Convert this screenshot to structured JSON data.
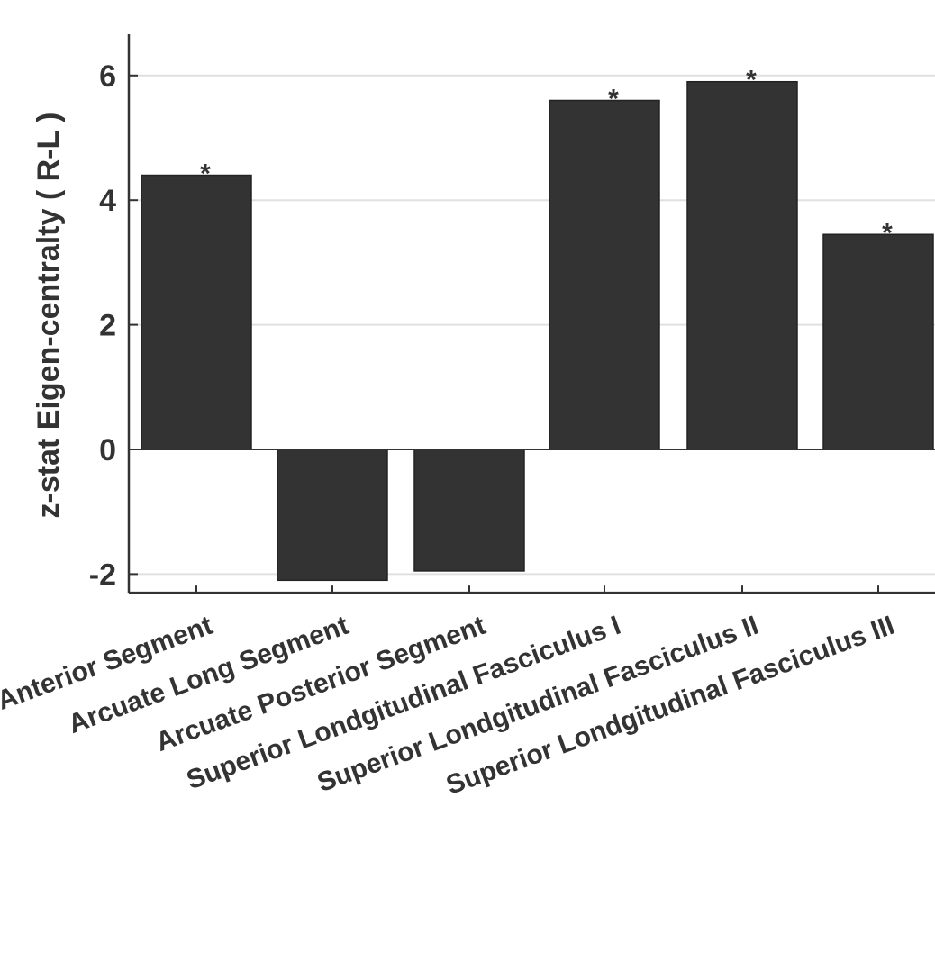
{
  "chart_data": {
    "type": "bar",
    "categories": [
      "Arcuate Anterior Segment",
      "Arcuate Long Segment",
      "Arcuate Posterior Segment",
      "Superior Londgitudinal Fasciculus I",
      "Superior Londgitudinal Fasciculus II",
      "Superior Londgitudinal Fasciculus III"
    ],
    "values": [
      4.4,
      -2.1,
      -1.95,
      5.6,
      5.9,
      3.45
    ],
    "significance": [
      "*",
      "",
      "",
      "*",
      "*",
      "*"
    ],
    "ylabel": "z-stat Eigen-centralty ( R-L )",
    "xlabel": "",
    "title": "",
    "ylim": [
      -2.3,
      6.6
    ],
    "yticks": [
      -2,
      0,
      2,
      4,
      6
    ],
    "grid": true,
    "bar_color": "#333333",
    "grid_color": "#e0e0e0",
    "axis_color": "#333333"
  }
}
